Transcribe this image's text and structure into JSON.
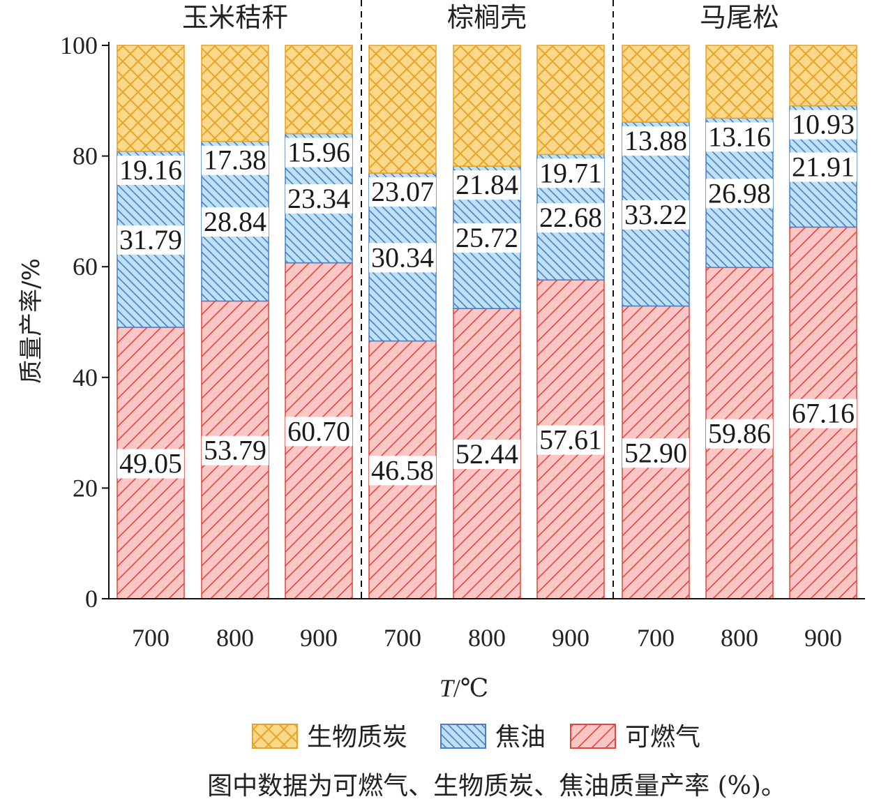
{
  "chart_data": {
    "type": "bar",
    "stacked": true,
    "groups": [
      "玉米秸秆",
      "棕榈壳",
      "马尾松"
    ],
    "categories": [
      "700",
      "800",
      "900",
      "700",
      "800",
      "900",
      "700",
      "800",
      "900"
    ],
    "series": [
      {
        "name": "可燃气",
        "values": [
          49.05,
          53.79,
          60.7,
          46.58,
          52.44,
          57.61,
          52.9,
          59.86,
          67.16
        ],
        "labels": [
          "49.05",
          "53.79",
          "60.70",
          "46.58",
          "52.44",
          "57.61",
          "52.90",
          "59.86",
          "67.16"
        ]
      },
      {
        "name": "焦油",
        "values": [
          31.79,
          28.84,
          23.34,
          30.34,
          25.72,
          22.68,
          33.22,
          26.98,
          21.91
        ],
        "labels": [
          "31.79",
          "28.84",
          "23.34",
          "30.34",
          "25.72",
          "22.68",
          "33.22",
          "26.98",
          "21.91"
        ]
      },
      {
        "name": "生物质炭",
        "values": [
          19.16,
          17.38,
          15.96,
          23.07,
          21.84,
          19.71,
          13.88,
          13.16,
          10.93
        ],
        "labels": [
          "19.16",
          "17.38",
          "15.96",
          "23.07",
          "21.84",
          "19.71",
          "13.88",
          "13.16",
          "10.93"
        ]
      }
    ],
    "legend_order": [
      "生物质炭",
      "焦油",
      "可燃气"
    ],
    "legend_position": "bottom",
    "xlabel_italic": "T",
    "xlabel_rest": "/℃",
    "ylabel": "质量产率/%",
    "ylim": [
      0,
      100
    ],
    "yticks": [
      "0",
      "20",
      "40",
      "60",
      "80",
      "100"
    ],
    "colors": {
      "生物质炭": {
        "fill": "#fcd98a",
        "stroke": "#e8a326"
      },
      "焦油": {
        "fill": "#bfe1f6",
        "stroke": "#4a7fc6"
      },
      "可燃气": {
        "fill": "#fac6c6",
        "stroke": "#e2463c"
      }
    },
    "note": "图中数据为可燃气、生物质炭、焦油质量产率 (%)。"
  }
}
